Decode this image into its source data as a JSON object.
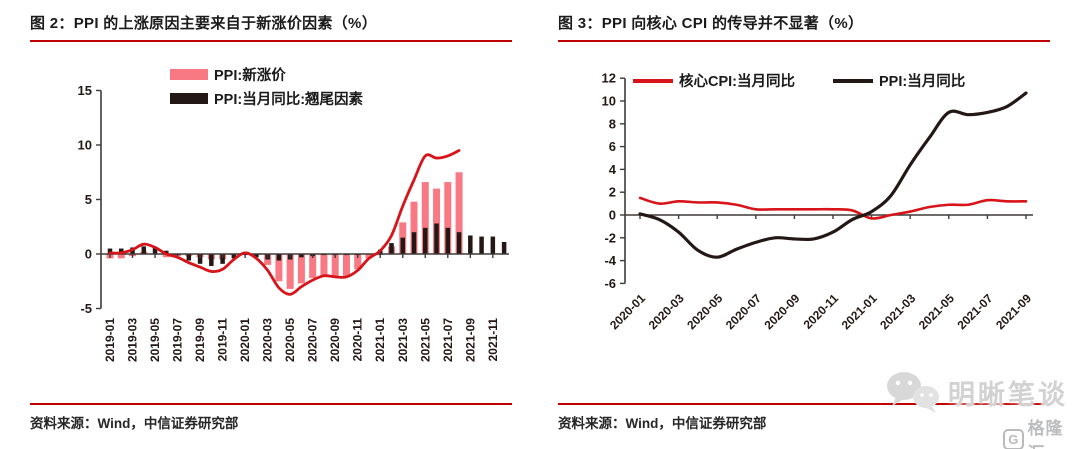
{
  "page": {
    "background": "#ffffff",
    "accent_red": "#c00000",
    "watermark": {
      "wechat_icon": "wechat-chat-bubbles-icon",
      "wechat_name": "明晰笔谈",
      "logo_letter": "G",
      "logo_text": "格隆汇"
    }
  },
  "figure2": {
    "title": "图 2：PPI 的上涨原因主要来自于新涨价因素（%）",
    "source": "资料来源：Wind，中信证券研究部",
    "chart_data": {
      "type": "bar",
      "subtype": "overlapped bars + unlabeled total line",
      "title": "PPI 的上涨原因主要来自于新涨价因素（%）",
      "xlabel": "",
      "ylabel": "",
      "ylim": [
        -5,
        15
      ],
      "yticks": [
        15,
        10,
        5,
        0,
        -5
      ],
      "grid": false,
      "legend_position": "top",
      "categories": [
        "2019-01",
        "2019-02",
        "2019-03",
        "2019-04",
        "2019-05",
        "2019-06",
        "2019-07",
        "2019-08",
        "2019-09",
        "2019-10",
        "2019-11",
        "2019-12",
        "2020-01",
        "2020-02",
        "2020-03",
        "2020-04",
        "2020-05",
        "2020-06",
        "2020-07",
        "2020-08",
        "2020-09",
        "2020-10",
        "2020-11",
        "2020-12",
        "2021-01",
        "2021-02",
        "2021-03",
        "2021-04",
        "2021-05",
        "2021-06",
        "2021-07",
        "2021-08",
        "2021-09",
        "2021-10",
        "2021-11",
        "2021-12"
      ],
      "xtick_labels": [
        "2019-01",
        "2019-03",
        "2019-05",
        "2019-07",
        "2019-09",
        "2019-11",
        "2020-01",
        "2020-03",
        "2020-05",
        "2020-07",
        "2020-09",
        "2020-11",
        "2021-01",
        "2021-03",
        "2021-05",
        "2021-07",
        "2021-09",
        "2021-11"
      ],
      "series": [
        {
          "name": "PPI:新涨价",
          "type": "bar",
          "color": "#f87983",
          "in_legend": true,
          "values": [
            -0.4,
            -0.4,
            -0.2,
            0.2,
            0.0,
            -0.3,
            -0.2,
            -0.2,
            -0.3,
            -0.5,
            -0.5,
            -0.1,
            0.2,
            -0.1,
            -1.0,
            -2.5,
            -3.2,
            -2.7,
            -2.2,
            -1.9,
            -2.0,
            -2.0,
            -1.4,
            -0.4,
            -0.1,
            0.7,
            2.9,
            4.8,
            6.6,
            6.0,
            6.6,
            7.5,
            null,
            null,
            null,
            null
          ]
        },
        {
          "name": "PPI:当月同比:翘尾因素",
          "type": "bar",
          "color": "#231815",
          "in_legend": true,
          "values": [
            0.5,
            0.5,
            0.6,
            0.7,
            0.6,
            0.3,
            -0.1,
            -0.6,
            -0.9,
            -1.1,
            -0.9,
            -0.4,
            -0.1,
            -0.3,
            -0.5,
            -0.6,
            -0.5,
            -0.3,
            -0.2,
            -0.1,
            -0.1,
            -0.1,
            -0.1,
            0.0,
            0.4,
            1.0,
            1.5,
            2.0,
            2.4,
            2.8,
            2.4,
            2.0,
            1.7,
            1.6,
            1.6,
            1.1
          ]
        },
        {
          "name": "PPI:当月同比",
          "type": "line",
          "color": "#d7141a",
          "in_legend": false,
          "values": [
            0.1,
            0.1,
            0.4,
            0.9,
            0.6,
            0.0,
            -0.3,
            -0.8,
            -1.2,
            -1.6,
            -1.4,
            -0.5,
            0.1,
            -0.4,
            -1.5,
            -3.1,
            -3.7,
            -3.0,
            -2.4,
            -2.0,
            -2.1,
            -2.1,
            -1.5,
            -0.4,
            0.3,
            1.7,
            4.4,
            6.8,
            9.0,
            8.8,
            9.0,
            9.5,
            null,
            null,
            null,
            null
          ]
        }
      ]
    }
  },
  "figure3": {
    "title": "图 3：PPI 向核心 CPI 的传导并不显著（%）",
    "source": "资料来源：Wind，中信证券研究部",
    "chart_data": {
      "type": "line",
      "title": "PPI 向核心 CPI 的传导并不显著（%）",
      "xlabel": "",
      "ylabel": "",
      "ylim": [
        -6,
        12
      ],
      "yticks": [
        12,
        10,
        8,
        6,
        4,
        2,
        0,
        -2,
        -4,
        -6
      ],
      "grid": false,
      "legend_position": "top",
      "categories": [
        "2020-01",
        "2020-02",
        "2020-03",
        "2020-04",
        "2020-05",
        "2020-06",
        "2020-07",
        "2020-08",
        "2020-09",
        "2020-10",
        "2020-11",
        "2020-12",
        "2021-01",
        "2021-02",
        "2021-03",
        "2021-04",
        "2021-05",
        "2021-06",
        "2021-07",
        "2021-08",
        "2021-09"
      ],
      "xtick_labels": [
        "2020-01",
        "2020-03",
        "2020-05",
        "2020-07",
        "2020-09",
        "2020-11",
        "2021-01",
        "2021-03",
        "2021-05",
        "2021-07",
        "2021-09"
      ],
      "series": [
        {
          "name": "核心CPI:当月同比",
          "type": "line",
          "color": "#d7141a",
          "in_legend": true,
          "values": [
            1.5,
            1.0,
            1.2,
            1.1,
            1.1,
            0.9,
            0.5,
            0.5,
            0.5,
            0.5,
            0.5,
            0.4,
            -0.3,
            0.0,
            0.3,
            0.7,
            0.9,
            0.9,
            1.3,
            1.2,
            1.2
          ]
        },
        {
          "name": "PPI:当月同比",
          "type": "line",
          "color": "#231815",
          "in_legend": true,
          "values": [
            0.1,
            -0.4,
            -1.5,
            -3.1,
            -3.7,
            -3.0,
            -2.4,
            -2.0,
            -2.1,
            -2.1,
            -1.5,
            -0.4,
            0.3,
            1.7,
            4.4,
            6.8,
            9.0,
            8.8,
            9.0,
            9.5,
            10.7
          ]
        }
      ]
    }
  }
}
